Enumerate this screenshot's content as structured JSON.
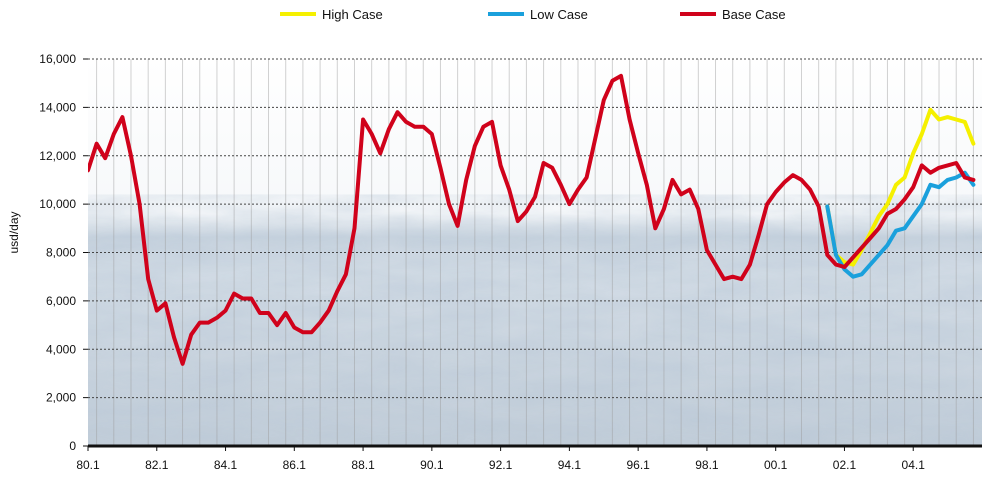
{
  "chart_data": {
    "type": "line",
    "title": "",
    "xlabel": "",
    "ylabel": "usd/day",
    "ylim": [
      0,
      16000
    ],
    "xlim": [
      1980.0,
      2006.0
    ],
    "yticks": [
      0,
      2000,
      4000,
      6000,
      8000,
      10000,
      12000,
      14000,
      16000
    ],
    "ytick_labels": [
      "0",
      "2,000",
      "4,000",
      "6,000",
      "8,000",
      "10,000",
      "12,000",
      "14,000",
      "16,000"
    ],
    "xticks": [
      1980.0,
      1982.0,
      1984.0,
      1986.0,
      1988.0,
      1990.0,
      1992.0,
      1994.0,
      1996.0,
      1998.0,
      2000.0,
      2002.0,
      2004.0
    ],
    "xtick_labels": [
      "80.1",
      "82.1",
      "84.1",
      "86.1",
      "88.1",
      "90.1",
      "92.1",
      "94.1",
      "96.1",
      "98.1",
      "00.1",
      "02.1",
      "04.1"
    ],
    "grid": {
      "horizontal": "dotted",
      "vertical": "solid-light"
    },
    "legend": {
      "placement": "top",
      "entries": [
        "High Case",
        "Low Case",
        "Base Case"
      ]
    },
    "background": "photographic water texture",
    "colors": {
      "high": "#f5f000",
      "low": "#1aa0dc",
      "base": "#d0021b",
      "grid": "#444444"
    },
    "series": [
      {
        "name": "Base Case",
        "color": "#d0021b",
        "x": [
          1980.0,
          1980.25,
          1980.5,
          1980.75,
          1981.0,
          1981.25,
          1981.5,
          1981.75,
          1982.0,
          1982.25,
          1982.5,
          1982.75,
          1983.0,
          1983.25,
          1983.5,
          1983.75,
          1984.0,
          1984.25,
          1984.5,
          1984.75,
          1985.0,
          1985.25,
          1985.5,
          1985.75,
          1986.0,
          1986.25,
          1986.5,
          1986.75,
          1987.0,
          1987.25,
          1987.5,
          1987.75,
          1988.0,
          1988.25,
          1988.5,
          1988.75,
          1989.0,
          1989.25,
          1989.5,
          1989.75,
          1990.0,
          1990.25,
          1990.5,
          1990.75,
          1991.0,
          1991.25,
          1991.5,
          1991.75,
          1992.0,
          1992.25,
          1992.5,
          1992.75,
          1993.0,
          1993.25,
          1993.5,
          1993.75,
          1994.0,
          1994.25,
          1994.5,
          1994.75,
          1995.0,
          1995.25,
          1995.5,
          1995.75,
          1996.0,
          1996.25,
          1996.5,
          1996.75,
          1997.0,
          1997.25,
          1997.5,
          1997.75,
          1998.0,
          1998.25,
          1998.5,
          1998.75,
          1999.0,
          1999.25,
          1999.5,
          1999.75,
          2000.0,
          2000.25,
          2000.5,
          2000.75,
          2001.0,
          2001.25,
          2001.5,
          2001.75,
          2002.0,
          2002.25,
          2002.5,
          2002.75,
          2003.0,
          2003.25,
          2003.5,
          2003.75,
          2004.0,
          2004.25,
          2004.5,
          2004.75,
          2005.0,
          2005.25,
          2005.5,
          2005.75
        ],
        "values": [
          11400,
          12500,
          11900,
          12900,
          13600,
          12000,
          10000,
          6900,
          5600,
          5900,
          4500,
          3400,
          4600,
          5100,
          5100,
          5300,
          5600,
          6300,
          6100,
          6100,
          5500,
          5500,
          5000,
          5500,
          4900,
          4700,
          4700,
          5100,
          5600,
          6400,
          7100,
          9000,
          13500,
          12900,
          12100,
          13100,
          13800,
          13400,
          13200,
          13200,
          12900,
          11500,
          10000,
          9100,
          11000,
          12400,
          13200,
          13400,
          11600,
          10600,
          9300,
          9700,
          10300,
          11700,
          11500,
          10800,
          10000,
          10600,
          11100,
          12700,
          14300,
          15100,
          15300,
          13500,
          12100,
          10800,
          9000,
          9800,
          11000,
          10400,
          10600,
          9800,
          8100,
          7500,
          6900,
          7000,
          6900,
          7500,
          8700,
          10000,
          10500,
          10900,
          11200,
          11000,
          10600,
          9900,
          7900,
          7500,
          7400,
          7800,
          8200,
          8600,
          9000,
          9600,
          9800,
          10200,
          10700,
          11600,
          11300,
          11500,
          11600,
          11700,
          11100,
          11000
        ]
      },
      {
        "name": "High Case",
        "color": "#f5f000",
        "x": [
          2001.5,
          2001.75,
          2002.0,
          2002.25,
          2002.5,
          2002.75,
          2003.0,
          2003.25,
          2003.5,
          2003.75,
          2004.0,
          2004.25,
          2004.5,
          2004.75,
          2005.0,
          2005.25,
          2005.5,
          2005.75
        ],
        "values": [
          9900,
          7900,
          7600,
          7500,
          8100,
          8800,
          9500,
          10000,
          10800,
          11100,
          12100,
          12900,
          13900,
          13500,
          13600,
          13500,
          13400,
          12500
        ]
      },
      {
        "name": "Low Case",
        "color": "#1aa0dc",
        "x": [
          2001.5,
          2001.75,
          2002.0,
          2002.25,
          2002.5,
          2002.75,
          2003.0,
          2003.25,
          2003.5,
          2003.75,
          2004.0,
          2004.25,
          2004.5,
          2004.75,
          2005.0,
          2005.25,
          2005.5,
          2005.75
        ],
        "values": [
          9900,
          7900,
          7300,
          7000,
          7100,
          7500,
          7900,
          8300,
          8900,
          9000,
          9500,
          10000,
          10800,
          10700,
          11000,
          11100,
          11300,
          10800
        ]
      }
    ]
  }
}
